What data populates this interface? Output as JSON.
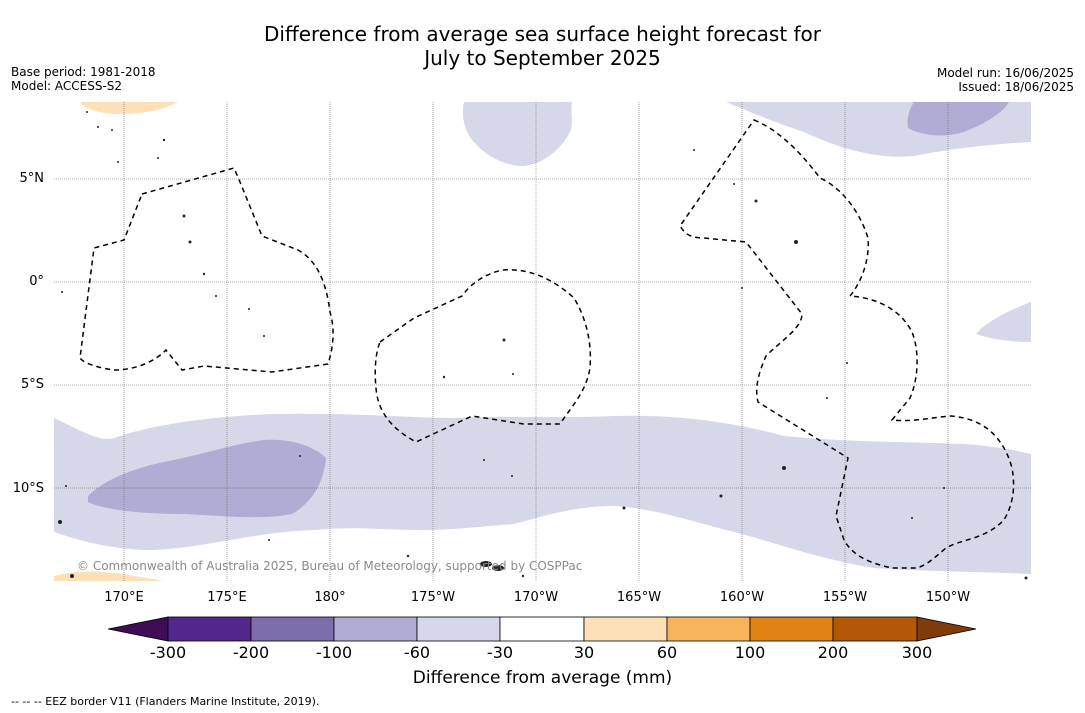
{
  "title": {
    "line1": "Difference from average sea surface height forecast for",
    "line2": "July to September 2025"
  },
  "meta": {
    "base_period": "Base period: 1981-2018",
    "model": "Model: ACCESS-S2",
    "model_run": "Model run: 16/06/2025",
    "issued": "Issued: 18/06/2025"
  },
  "map": {
    "longitude_labels": [
      "170°E",
      "175°E",
      "180°",
      "175°W",
      "170°W",
      "165°W",
      "160°W",
      "155°W",
      "150°W"
    ],
    "latitude_labels": [
      "5°N",
      "0°",
      "5°S",
      "10°S"
    ],
    "copyright": "© Commonwealth of Australia 2025, Bureau of Meteorology, supported by COSPPac",
    "colors": {
      "neg_30_60": "#d6d7e8",
      "neg_60_100": "#b0acd3",
      "pos_30_60": "#fde0b7",
      "land": "#555555"
    }
  },
  "colorbar": {
    "label": "Difference from average (mm)",
    "ticks": [
      "-300",
      "-200",
      "-100",
      "-60",
      "-30",
      "30",
      "60",
      "100",
      "200",
      "300"
    ],
    "colors": [
      "#3f0d55",
      "#54278f",
      "#7b6eaa",
      "#b0acd3",
      "#d6d7e8",
      "#ffffff",
      "#fde0b7",
      "#f7b45a",
      "#e08214",
      "#b35806",
      "#7f3b08"
    ]
  },
  "footer": "-- -- -- EEZ border V11 (Flanders Marine Institute, 2019)."
}
